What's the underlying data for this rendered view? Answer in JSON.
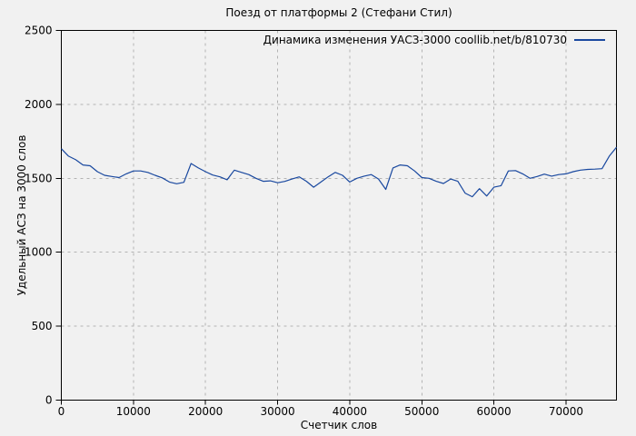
{
  "window": {
    "background": "#f1f1f1"
  },
  "chart_data": {
    "type": "line",
    "title": "Поезд от платформы 2 (Стефани Стил)",
    "xlabel": "Счетчик слов",
    "ylabel": "Удельный АСЗ на 3000 слов",
    "legend_position": "top-right-inside",
    "legend": [
      {
        "label": "Динамика изменения УАСЗ-3000 coollib.net/b/810730",
        "color": "#19489f"
      }
    ],
    "xlim": [
      0,
      77000
    ],
    "ylim": [
      0,
      2500
    ],
    "x_ticks": [
      0,
      10000,
      20000,
      30000,
      40000,
      50000,
      60000,
      70000
    ],
    "y_ticks": [
      0,
      500,
      1000,
      1500,
      2000,
      2500
    ],
    "grid": true,
    "grid_color": "#b3b3b3",
    "axis_color": "#000000",
    "line_color": "#19489f",
    "series": [
      {
        "name": "Динамика изменения УАСЗ-3000 coollib.net/b/810730",
        "x": [
          0,
          1000,
          2000,
          3000,
          4000,
          5000,
          6000,
          7000,
          8000,
          9000,
          10000,
          11000,
          12000,
          13000,
          14000,
          15000,
          16000,
          17000,
          18000,
          19000,
          20000,
          21000,
          22000,
          23000,
          24000,
          25000,
          26000,
          27000,
          28000,
          29000,
          30000,
          31000,
          32000,
          33000,
          34000,
          35000,
          36000,
          37000,
          38000,
          39000,
          40000,
          41000,
          42000,
          43000,
          44000,
          45000,
          46000,
          47000,
          48000,
          49000,
          50000,
          51000,
          52000,
          53000,
          54000,
          55000,
          56000,
          57000,
          58000,
          59000,
          60000,
          61000,
          62000,
          63000,
          64000,
          65000,
          66000,
          67000,
          68000,
          69000,
          70000,
          71000,
          72000,
          73000,
          74000,
          75000,
          76000,
          77000
        ],
        "y": [
          1700,
          1650,
          1625,
          1590,
          1585,
          1545,
          1520,
          1512,
          1505,
          1530,
          1550,
          1550,
          1540,
          1520,
          1503,
          1475,
          1463,
          1473,
          1600,
          1570,
          1545,
          1522,
          1510,
          1490,
          1555,
          1540,
          1525,
          1500,
          1480,
          1483,
          1470,
          1479,
          1495,
          1510,
          1480,
          1440,
          1475,
          1510,
          1540,
          1520,
          1475,
          1500,
          1515,
          1525,
          1495,
          1425,
          1570,
          1590,
          1585,
          1550,
          1505,
          1500,
          1480,
          1465,
          1495,
          1480,
          1400,
          1375,
          1430,
          1380,
          1440,
          1450,
          1550,
          1552,
          1530,
          1500,
          1512,
          1528,
          1515,
          1525,
          1530,
          1545,
          1555,
          1560,
          1562,
          1565,
          1650,
          1710
        ]
      }
    ]
  }
}
